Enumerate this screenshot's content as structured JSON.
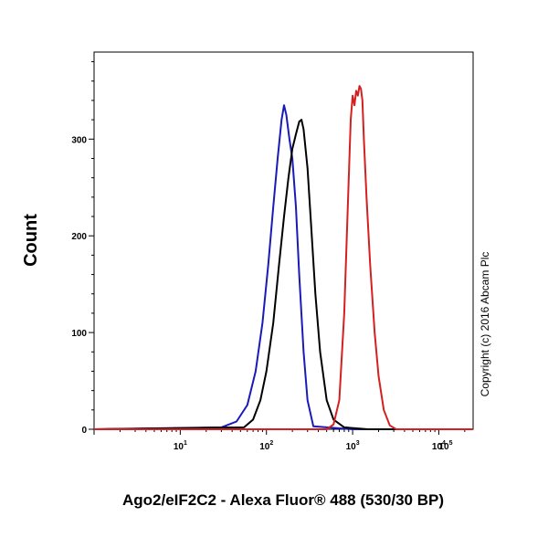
{
  "chart_data": {
    "type": "line",
    "title": "",
    "xlabel": "Ago2/eIF2C2 - Alexa Fluor® 488 (530/30 BP)",
    "ylabel": "Count",
    "x_scale": "log",
    "xlim": [
      1,
      25000
    ],
    "ylim": [
      0,
      390
    ],
    "y_ticks": [
      0,
      100,
      200,
      300
    ],
    "y_tick_labels": [
      "0",
      "100",
      "200",
      "300"
    ],
    "x_ticks": [
      {
        "value": 10,
        "base": "10",
        "exp": "1"
      },
      {
        "value": 100,
        "base": "10",
        "exp": "2"
      },
      {
        "value": 1000,
        "base": "10",
        "exp": "3"
      },
      {
        "value": 10000,
        "base": "10",
        "exp": "4"
      },
      {
        "value": 100000,
        "base": "10",
        "exp": "5"
      }
    ],
    "grid": false,
    "series": [
      {
        "color": "#1a1ab8",
        "x": [
          1,
          30,
          45,
          60,
          75,
          90,
          105,
          120,
          135,
          150,
          160,
          170,
          185,
          200,
          220,
          240,
          270,
          300,
          350,
          1000,
          25000
        ],
        "y": [
          0,
          2,
          8,
          25,
          60,
          110,
          170,
          230,
          280,
          320,
          335,
          325,
          300,
          280,
          230,
          160,
          80,
          30,
          3,
          0,
          0
        ]
      },
      {
        "color": "#000000",
        "x": [
          1,
          55,
          70,
          85,
          100,
          120,
          140,
          160,
          180,
          200,
          220,
          240,
          255,
          270,
          300,
          330,
          370,
          420,
          500,
          600,
          800,
          1500,
          25000
        ],
        "y": [
          0,
          2,
          10,
          30,
          60,
          110,
          170,
          220,
          260,
          290,
          305,
          318,
          320,
          310,
          270,
          210,
          140,
          80,
          30,
          10,
          2,
          0,
          0
        ]
      },
      {
        "color": "#d42020",
        "x": [
          1,
          500,
          600,
          700,
          800,
          880,
          950,
          1000,
          1050,
          1100,
          1150,
          1200,
          1250,
          1300,
          1350,
          1450,
          1600,
          1800,
          2000,
          2300,
          2700,
          3200,
          25000
        ],
        "y": [
          0,
          0,
          5,
          30,
          120,
          230,
          320,
          345,
          335,
          350,
          345,
          355,
          352,
          340,
          300,
          240,
          170,
          100,
          55,
          20,
          4,
          0,
          0
        ]
      }
    ]
  },
  "copyright": "Copyright (c) 2016 Abcam Plc"
}
